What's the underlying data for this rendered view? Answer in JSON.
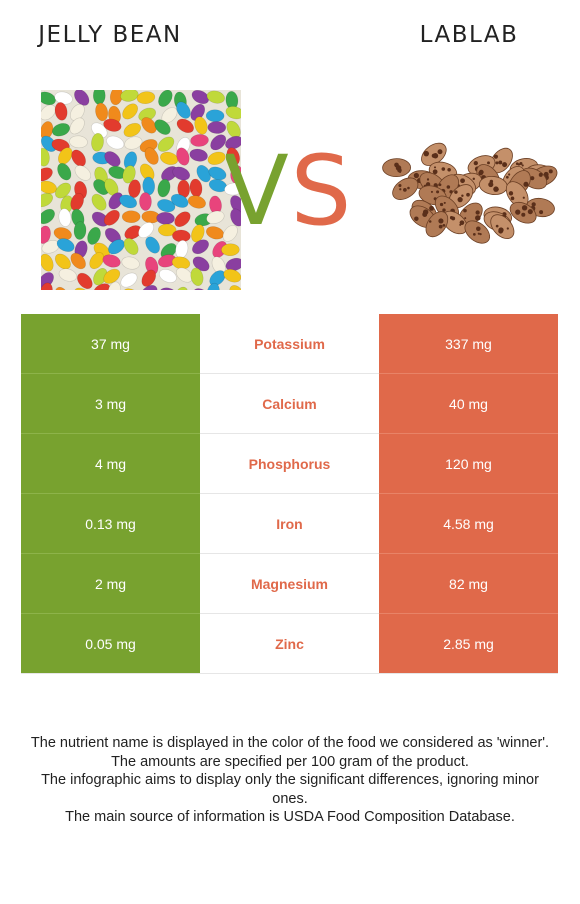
{
  "header": {
    "left_title": "JELLY BEAN",
    "right_title": "LABLAB",
    "vs_v": "V",
    "vs_s": "S"
  },
  "colors": {
    "left": "#78a22f",
    "right": "#e0694a"
  },
  "icons": {
    "left_image": "jelly-beans-image",
    "right_image": "lablab-beans-image"
  },
  "rows": [
    {
      "left": "37 mg",
      "nutrient": "Potassium",
      "right": "337 mg"
    },
    {
      "left": "3 mg",
      "nutrient": "Calcium",
      "right": "40 mg"
    },
    {
      "left": "4 mg",
      "nutrient": "Phosphorus",
      "right": "120 mg"
    },
    {
      "left": "0.13 mg",
      "nutrient": "Iron",
      "right": "4.58 mg"
    },
    {
      "left": "2 mg",
      "nutrient": "Magnesium",
      "right": "82 mg"
    },
    {
      "left": "0.05 mg",
      "nutrient": "Zinc",
      "right": "2.85 mg"
    }
  ],
  "footer": [
    "The nutrient name is displayed in the color of the food we considered as 'winner'.",
    "The amounts are specified per 100 gram of the product.",
    "The infographic aims to display only the significant differences, ignoring minor ones.",
    "The main source of information is USDA Food Composition Database."
  ]
}
